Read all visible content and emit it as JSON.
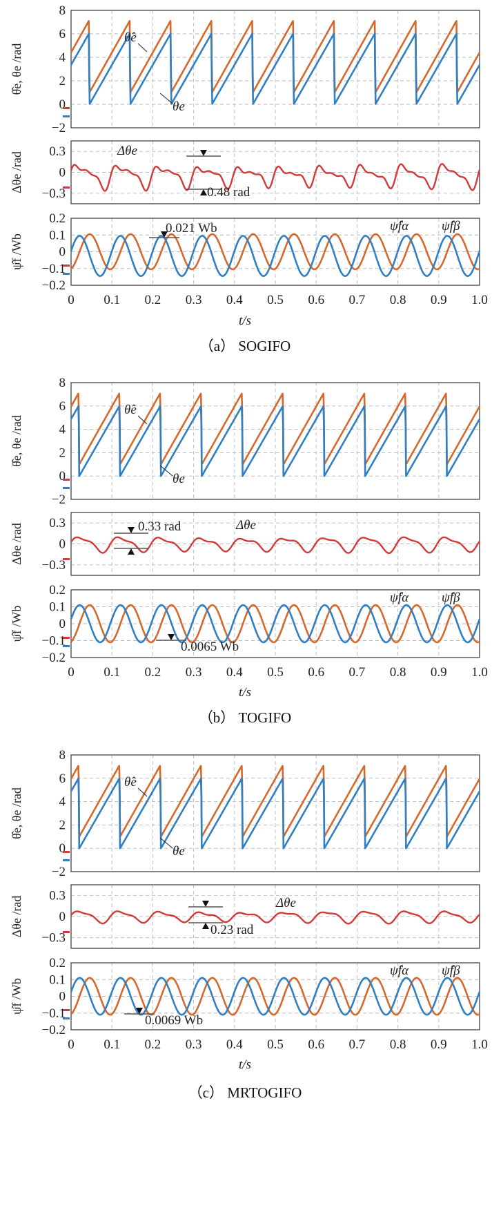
{
  "colors": {
    "blue": "#2f7fc4",
    "orange": "#d4692b",
    "red": "#d23a3a"
  },
  "chart_data": [
    {
      "type": "line",
      "figure": "(a)",
      "title": "（a） SOGIFO",
      "xlabel": "t/s",
      "xlim": [
        0,
        1.0
      ],
      "xticks": [
        "0",
        "0.1",
        "0.2",
        "0.3",
        "0.4",
        "0.5",
        "0.6",
        "0.7",
        "0.8",
        "0.9",
        "1.0"
      ],
      "panels": [
        {
          "kind": "sawtooth",
          "ylabel": "θ̂e, θe /rad",
          "ylim": [
            -2,
            8
          ],
          "yticks": [
            "8",
            "6",
            "4",
            "2",
            "0",
            "−2"
          ],
          "series": [
            {
              "name": "θ̂e",
              "label": "θ̂e",
              "color": "#d4692b",
              "min": 1.0,
              "max": 7.2,
              "period": 0.1,
              "phase": 0.045
            },
            {
              "name": "θe",
              "label": "θe",
              "color": "#2f7fc4",
              "min": 0.0,
              "max": 6.1,
              "period": 0.1,
              "phase": 0.045
            }
          ]
        },
        {
          "kind": "error",
          "ylabel": "Δθe /rad",
          "ylim": [
            -0.45,
            0.45
          ],
          "yticks": [
            "0.3",
            "0",
            "−0.3"
          ],
          "series": [
            {
              "name": "Δθe",
              "label": "Δθe",
              "color": "#d23a3a",
              "amplitude": 0.18,
              "period": 0.1,
              "style": "peaky"
            }
          ],
          "annotation": "0.48 rad"
        },
        {
          "kind": "flux",
          "ylabel": "ψ̂f /Wb",
          "ylim": [
            -0.2,
            0.2
          ],
          "yticks": [
            "0.2",
            "0.1",
            "0",
            "−0.1",
            "−0.2"
          ],
          "series": [
            {
              "name": "ψ̂fα",
              "label": "ψ̂fα",
              "color": "#d4692b",
              "amplitude": 0.105,
              "offset": 0.0
            },
            {
              "name": "ψ̂fβ",
              "label": "ψ̂fβ",
              "color": "#2f7fc4",
              "amplitude": 0.12,
              "offset": -0.025
            }
          ],
          "annotation": "0.021 Wb"
        }
      ]
    },
    {
      "type": "line",
      "figure": "(b)",
      "title": "（b） TOGIFO",
      "xlabel": "t/s",
      "xlim": [
        0,
        1.0
      ],
      "xticks": [
        "0",
        "0.1",
        "0.2",
        "0.3",
        "0.4",
        "0.5",
        "0.6",
        "0.7",
        "0.8",
        "0.9",
        "1.0"
      ],
      "panels": [
        {
          "kind": "sawtooth",
          "ylabel": "θ̂e, θe /rad",
          "ylim": [
            -2,
            8
          ],
          "yticks": [
            "8",
            "6",
            "4",
            "2",
            "0",
            "−2"
          ],
          "series": [
            {
              "name": "θ̂e",
              "label": "θ̂e",
              "color": "#d4692b",
              "min": 1.0,
              "max": 7.2,
              "period": 0.1,
              "phase": 0.02
            },
            {
              "name": "θe",
              "label": "θe",
              "color": "#2f7fc4",
              "min": 0.0,
              "max": 6.1,
              "period": 0.1,
              "phase": 0.02
            }
          ]
        },
        {
          "kind": "error",
          "ylabel": "Δθe /rad",
          "ylim": [
            -0.45,
            0.45
          ],
          "yticks": [
            "0.3",
            "0",
            "−0.3"
          ],
          "series": [
            {
              "name": "Δθe",
              "label": "Δθe",
              "color": "#d23a3a",
              "amplitude": 0.1,
              "period": 0.1,
              "style": "smooth"
            }
          ],
          "annotation": "0.33 rad"
        },
        {
          "kind": "flux",
          "ylabel": "ψ̂f /Wb",
          "ylim": [
            -0.2,
            0.2
          ],
          "yticks": [
            "0.2",
            "0.1",
            "0",
            "−0.1",
            "−0.2"
          ],
          "series": [
            {
              "name": "ψ̂fα",
              "label": "ψ̂fα",
              "color": "#d4692b",
              "amplitude": 0.11,
              "offset": 0.0
            },
            {
              "name": "ψ̂fβ",
              "label": "ψ̂fβ",
              "color": "#2f7fc4",
              "amplitude": 0.11,
              "offset": 0.0
            }
          ],
          "annotation": "0.0065 Wb"
        }
      ]
    },
    {
      "type": "line",
      "figure": "(c)",
      "title": "（c） MRTOGIFO",
      "xlabel": "t/s",
      "xlim": [
        0,
        1.0
      ],
      "xticks": [
        "0",
        "0.1",
        "0.2",
        "0.3",
        "0.4",
        "0.5",
        "0.6",
        "0.7",
        "0.8",
        "0.9",
        "1.0"
      ],
      "panels": [
        {
          "kind": "sawtooth",
          "ylabel": "θ̂e, θe /rad",
          "ylim": [
            -2,
            8
          ],
          "yticks": [
            "8",
            "6",
            "4",
            "2",
            "0",
            "−2"
          ],
          "series": [
            {
              "name": "θ̂e",
              "label": "θ̂e",
              "color": "#d4692b",
              "min": 1.0,
              "max": 7.2,
              "period": 0.1,
              "phase": 0.02
            },
            {
              "name": "θe",
              "label": "θe",
              "color": "#2f7fc4",
              "min": 0.0,
              "max": 6.1,
              "period": 0.1,
              "phase": 0.02
            }
          ]
        },
        {
          "kind": "error",
          "ylabel": "Δθe /rad",
          "ylim": [
            -0.45,
            0.45
          ],
          "yticks": [
            "0.3",
            "0",
            "−0.3"
          ],
          "series": [
            {
              "name": "Δθe",
              "label": "Δθe",
              "color": "#d23a3a",
              "amplitude": 0.075,
              "period": 0.1,
              "style": "smooth"
            }
          ],
          "annotation": "0.23 rad"
        },
        {
          "kind": "flux",
          "ylabel": "ψ̂f /Wb",
          "ylim": [
            -0.2,
            0.2
          ],
          "yticks": [
            "0.2",
            "0.1",
            "0",
            "−0.1",
            "−0.2"
          ],
          "series": [
            {
              "name": "ψ̂fα",
              "label": "ψ̂fα",
              "color": "#d4692b",
              "amplitude": 0.11,
              "offset": 0.0
            },
            {
              "name": "ψ̂fβ",
              "label": "ψ̂fβ",
              "color": "#2f7fc4",
              "amplitude": 0.11,
              "offset": 0.0
            }
          ],
          "annotation": "0.0069 Wb"
        }
      ]
    }
  ]
}
